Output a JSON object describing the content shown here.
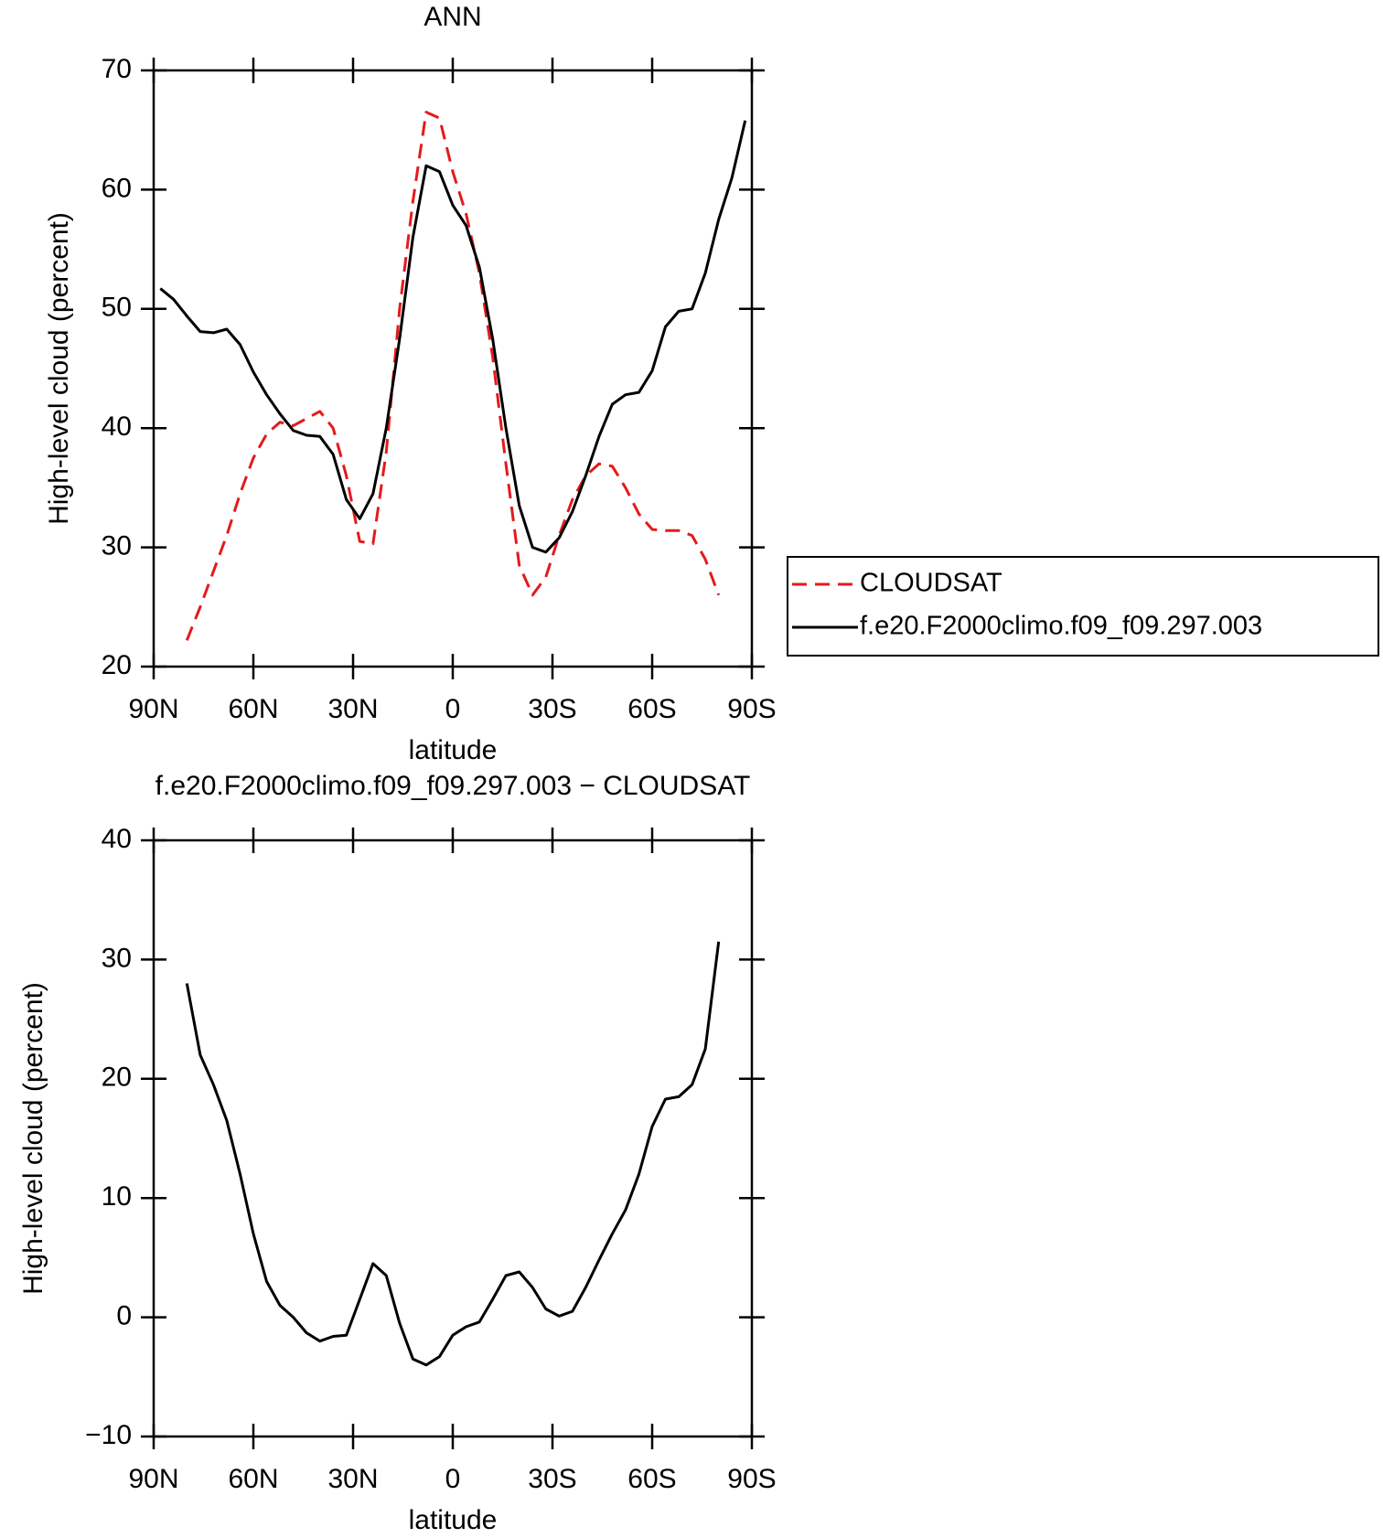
{
  "chart_data": [
    {
      "type": "line",
      "title": "ANN",
      "xlabel": "latitude",
      "ylabel": "High-level cloud (percent)",
      "x": [
        88,
        84,
        80,
        76,
        72,
        68,
        64,
        60,
        56,
        52,
        48,
        44,
        40,
        36,
        32,
        28,
        24,
        20,
        16,
        12,
        8,
        4,
        0,
        -4,
        -8,
        -12,
        -16,
        -20,
        -24,
        -28,
        -32,
        -36,
        -40,
        -44,
        -48,
        -52,
        -56,
        -60,
        -64,
        -68,
        -72,
        -76,
        -80,
        -84,
        -88
      ],
      "xlim": [
        90,
        -90
      ],
      "xticks": [
        {
          "value": 90,
          "label": "90N"
        },
        {
          "value": 60,
          "label": "60N"
        },
        {
          "value": 30,
          "label": "30N"
        },
        0,
        {
          "value": -30,
          "label": "30S"
        },
        {
          "value": -60,
          "label": "60S"
        },
        {
          "value": -90,
          "label": "90S"
        }
      ],
      "ylim": [
        20,
        70
      ],
      "yticks": [
        20,
        30,
        40,
        50,
        60,
        70
      ],
      "legend": "right",
      "series": [
        {
          "name": "CLOUDSAT",
          "color": "#e41a1c",
          "dash": "dashed",
          "values": [
            null,
            null,
            22.2,
            25.0,
            28.0,
            31.0,
            34.5,
            37.5,
            39.5,
            40.5,
            40.2,
            40.8,
            41.4,
            40.0,
            36.0,
            30.5,
            30.3,
            38.0,
            50.0,
            59.0,
            66.5,
            66.0,
            61.5,
            58.0,
            53.0,
            46.0,
            37.0,
            28.5,
            26.0,
            27.5,
            31.0,
            34.0,
            36.0,
            37.0,
            36.8,
            35.0,
            32.8,
            31.5,
            31.4,
            31.4,
            31.0,
            29.0,
            26.0,
            null,
            null
          ]
        },
        {
          "name": "f.e20.F2000climo.f09_f09.297.003",
          "color": "#000000",
          "dash": "solid",
          "values": [
            51.7,
            50.8,
            49.4,
            48.1,
            48.0,
            48.3,
            47.0,
            44.7,
            42.8,
            41.2,
            39.8,
            39.4,
            39.3,
            37.8,
            34.0,
            32.4,
            34.5,
            40.0,
            47.5,
            56.0,
            62.0,
            61.5,
            58.7,
            57.0,
            53.5,
            47.5,
            40.0,
            33.5,
            30.0,
            29.6,
            30.8,
            33.0,
            36.0,
            39.3,
            42.0,
            42.8,
            43.0,
            44.8,
            48.5,
            49.8,
            50.0,
            53.0,
            57.5,
            61.0,
            65.8
          ]
        }
      ]
    },
    {
      "type": "line",
      "title": "f.e20.F2000climo.f09_f09.297.003 − CLOUDSAT",
      "xlabel": "latitude",
      "ylabel": "High-level cloud (percent)",
      "x": [
        80,
        76,
        72,
        68,
        64,
        60,
        56,
        52,
        48,
        44,
        40,
        36,
        32,
        28,
        24,
        20,
        16,
        12,
        8,
        4,
        0,
        -4,
        -8,
        -12,
        -16,
        -20,
        -24,
        -28,
        -32,
        -36,
        -40,
        -44,
        -48,
        -52,
        -56,
        -60,
        -64,
        -68,
        -72,
        -76,
        -80
      ],
      "xlim": [
        90,
        -90
      ],
      "xticks": [
        {
          "value": 90,
          "label": "90N"
        },
        {
          "value": 60,
          "label": "60N"
        },
        {
          "value": 30,
          "label": "30N"
        },
        0,
        {
          "value": -30,
          "label": "30S"
        },
        {
          "value": -60,
          "label": "60S"
        },
        {
          "value": -90,
          "label": "90S"
        }
      ],
      "ylim": [
        -10,
        40
      ],
      "yticks": [
        {
          "value": -10,
          "label": "−10"
        },
        0,
        10,
        20,
        30,
        40
      ],
      "series": [
        {
          "color": "#000000",
          "dash": "solid",
          "values": [
            28.0,
            22.0,
            19.5,
            16.5,
            12.0,
            7.0,
            3.0,
            1.0,
            0.0,
            -1.3,
            -2.0,
            -1.6,
            -1.5,
            1.5,
            4.5,
            3.5,
            -0.5,
            -3.5,
            -4.0,
            -3.3,
            -1.5,
            -0.8,
            -0.4,
            1.5,
            3.5,
            3.8,
            2.5,
            0.7,
            0.1,
            0.5,
            2.5,
            4.8,
            7.0,
            9.0,
            12.0,
            16.0,
            18.3,
            18.5,
            19.5,
            22.5,
            31.5
          ]
        }
      ]
    }
  ]
}
